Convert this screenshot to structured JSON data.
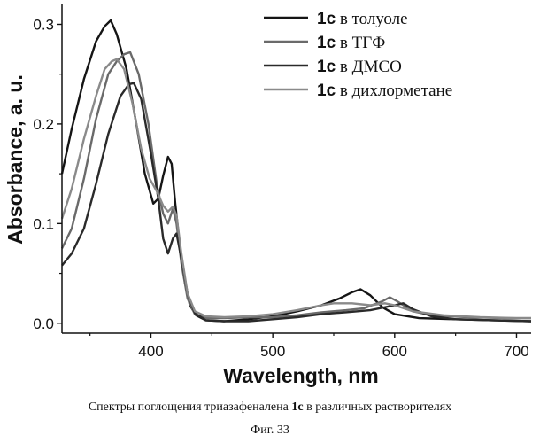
{
  "chart_data": {
    "type": "line",
    "xlabel": "Wavelength, nm",
    "ylabel": "Absorbance, a. u.",
    "xlim": [
      327,
      712
    ],
    "ylim": [
      -0.01,
      0.32
    ],
    "x_ticks": [
      400,
      500,
      600,
      700
    ],
    "y_ticks": [
      0.0,
      0.1,
      0.2,
      0.3
    ],
    "y_tick_labels": [
      "0.0",
      "0.1",
      "0.2",
      "0.3"
    ],
    "grid": false,
    "legend": "top-right",
    "series": [
      {
        "name": "1c в толуоле",
        "color": "#151515",
        "points": [
          [
            327,
            0.15
          ],
          [
            335,
            0.195
          ],
          [
            345,
            0.245
          ],
          [
            355,
            0.283
          ],
          [
            362,
            0.298
          ],
          [
            367,
            0.304
          ],
          [
            372,
            0.29
          ],
          [
            380,
            0.255
          ],
          [
            388,
            0.2
          ],
          [
            395,
            0.15
          ],
          [
            402,
            0.12
          ],
          [
            406,
            0.125
          ],
          [
            410,
            0.148
          ],
          [
            414,
            0.167
          ],
          [
            417,
            0.16
          ],
          [
            420,
            0.12
          ],
          [
            424,
            0.075
          ],
          [
            428,
            0.04
          ],
          [
            432,
            0.018
          ],
          [
            437,
            0.008
          ],
          [
            445,
            0.003
          ],
          [
            460,
            0.002
          ],
          [
            480,
            0.004
          ],
          [
            500,
            0.007
          ],
          [
            520,
            0.012
          ],
          [
            540,
            0.018
          ],
          [
            555,
            0.025
          ],
          [
            565,
            0.031
          ],
          [
            572,
            0.034
          ],
          [
            580,
            0.028
          ],
          [
            590,
            0.016
          ],
          [
            600,
            0.009
          ],
          [
            620,
            0.005
          ],
          [
            650,
            0.004
          ],
          [
            680,
            0.003
          ],
          [
            712,
            0.002
          ]
        ]
      },
      {
        "name": "1c в ТГФ",
        "color": "#6a6a6a",
        "points": [
          [
            327,
            0.075
          ],
          [
            335,
            0.095
          ],
          [
            345,
            0.145
          ],
          [
            355,
            0.205
          ],
          [
            365,
            0.25
          ],
          [
            372,
            0.263
          ],
          [
            378,
            0.27
          ],
          [
            383,
            0.272
          ],
          [
            390,
            0.25
          ],
          [
            398,
            0.2
          ],
          [
            405,
            0.138
          ],
          [
            410,
            0.11
          ],
          [
            414,
            0.1
          ],
          [
            418,
            0.115
          ],
          [
            421,
            0.1
          ],
          [
            425,
            0.06
          ],
          [
            430,
            0.025
          ],
          [
            436,
            0.009
          ],
          [
            445,
            0.005
          ],
          [
            460,
            0.005
          ],
          [
            480,
            0.006
          ],
          [
            500,
            0.006
          ],
          [
            520,
            0.008
          ],
          [
            540,
            0.011
          ],
          [
            560,
            0.013
          ],
          [
            575,
            0.015
          ],
          [
            590,
            0.022
          ],
          [
            596,
            0.026
          ],
          [
            602,
            0.022
          ],
          [
            615,
            0.012
          ],
          [
            630,
            0.008
          ],
          [
            660,
            0.006
          ],
          [
            690,
            0.005
          ],
          [
            712,
            0.005
          ]
        ]
      },
      {
        "name": "1c в ДМСО",
        "color": "#2a2a2a",
        "points": [
          [
            327,
            0.058
          ],
          [
            335,
            0.07
          ],
          [
            345,
            0.095
          ],
          [
            355,
            0.14
          ],
          [
            365,
            0.19
          ],
          [
            375,
            0.228
          ],
          [
            382,
            0.24
          ],
          [
            386,
            0.241
          ],
          [
            392,
            0.225
          ],
          [
            400,
            0.17
          ],
          [
            406,
            0.125
          ],
          [
            410,
            0.085
          ],
          [
            414,
            0.07
          ],
          [
            418,
            0.085
          ],
          [
            421,
            0.09
          ],
          [
            425,
            0.065
          ],
          [
            430,
            0.03
          ],
          [
            436,
            0.01
          ],
          [
            445,
            0.003
          ],
          [
            460,
            0.002
          ],
          [
            480,
            0.002
          ],
          [
            500,
            0.004
          ],
          [
            520,
            0.006
          ],
          [
            540,
            0.009
          ],
          [
            560,
            0.011
          ],
          [
            580,
            0.013
          ],
          [
            600,
            0.018
          ],
          [
            607,
            0.02
          ],
          [
            615,
            0.014
          ],
          [
            630,
            0.007
          ],
          [
            650,
            0.004
          ],
          [
            680,
            0.003
          ],
          [
            712,
            0.002
          ]
        ]
      },
      {
        "name": "1c в дихлорметане",
        "color": "#8a8a8a",
        "points": [
          [
            327,
            0.105
          ],
          [
            335,
            0.135
          ],
          [
            345,
            0.185
          ],
          [
            355,
            0.228
          ],
          [
            362,
            0.255
          ],
          [
            368,
            0.263
          ],
          [
            372,
            0.265
          ],
          [
            378,
            0.255
          ],
          [
            385,
            0.22
          ],
          [
            392,
            0.175
          ],
          [
            399,
            0.145
          ],
          [
            405,
            0.132
          ],
          [
            410,
            0.118
          ],
          [
            414,
            0.112
          ],
          [
            418,
            0.117
          ],
          [
            421,
            0.108
          ],
          [
            425,
            0.07
          ],
          [
            430,
            0.03
          ],
          [
            436,
            0.012
          ],
          [
            445,
            0.007
          ],
          [
            460,
            0.006
          ],
          [
            480,
            0.007
          ],
          [
            500,
            0.009
          ],
          [
            520,
            0.013
          ],
          [
            540,
            0.018
          ],
          [
            550,
            0.02
          ],
          [
            565,
            0.02
          ],
          [
            580,
            0.018
          ],
          [
            592,
            0.02
          ],
          [
            600,
            0.018
          ],
          [
            615,
            0.012
          ],
          [
            640,
            0.008
          ],
          [
            670,
            0.006
          ],
          [
            700,
            0.005
          ],
          [
            712,
            0.005
          ]
        ]
      }
    ]
  },
  "legend": {
    "prefix": "1c",
    "items": [
      " в толуоле",
      " в ТГФ",
      " в ДМСО",
      " в дихлорметане"
    ]
  },
  "caption": {
    "line1_pre": "Спектры поглощения триазафеналена ",
    "line1_bold": "1c",
    "line1_post": " в различных растворителях",
    "line2": "Фиг. 33"
  }
}
